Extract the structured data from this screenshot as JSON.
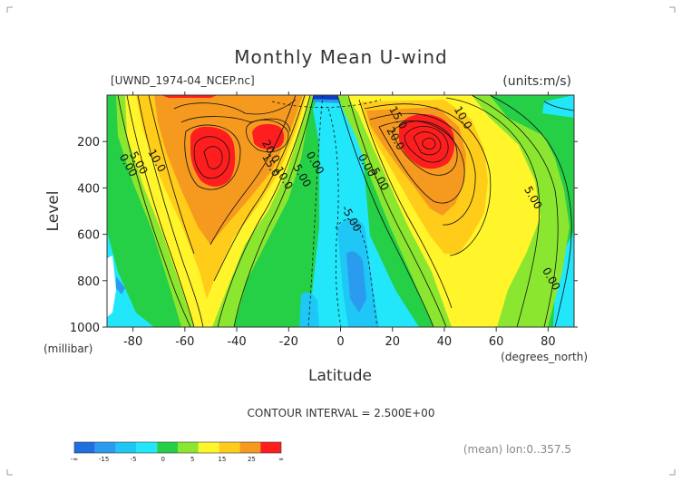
{
  "chart_data": {
    "type": "heatmap",
    "title": "Monthly Mean U-wind",
    "subtitle": "[UWND_1974-04_NCEP.nc]",
    "units": "(units:m/s)",
    "ylabel": "Level",
    "ylabel_unit": "(millibar)",
    "xlabel": "Latitude",
    "xlabel_unit": "(degrees_north)",
    "xlim": [
      -90,
      90
    ],
    "ylim": [
      1000,
      0
    ],
    "x_ticks": [
      -80,
      -60,
      -40,
      -20,
      0,
      20,
      40,
      60,
      80
    ],
    "y_ticks": [
      200,
      400,
      600,
      800,
      1000
    ],
    "contour_interval": "CONTOUR INTERVAL = 2.500E+00",
    "footer": "(mean) lon:0..357.5",
    "contour_labels": [
      {
        "text": "0.00",
        "lat": -83,
        "lev": 310
      },
      {
        "text": "5.00",
        "lat": -79,
        "lev": 300
      },
      {
        "text": "10.0",
        "lat": -72,
        "lev": 290
      },
      {
        "text": "20.0",
        "lat": -28,
        "lev": 250
      },
      {
        "text": "15.0",
        "lat": -28,
        "lev": 310
      },
      {
        "text": "10.0",
        "lat": -23,
        "lev": 365
      },
      {
        "text": "5.00",
        "lat": -16,
        "lev": 355
      },
      {
        "text": "0.00",
        "lat": -11,
        "lev": 300
      },
      {
        "text": "-5.00",
        "lat": 3,
        "lev": 540
      },
      {
        "text": "0.00",
        "lat": 9,
        "lev": 310
      },
      {
        "text": "5.00",
        "lat": 14,
        "lev": 370
      },
      {
        "text": "15.0",
        "lat": 21,
        "lev": 105
      },
      {
        "text": "20.0",
        "lat": 20,
        "lev": 195
      },
      {
        "text": "10.0",
        "lat": 46,
        "lev": 105
      },
      {
        "text": "5.00",
        "lat": 73,
        "lev": 450
      },
      {
        "text": "0.00",
        "lat": 80,
        "lev": 800
      }
    ],
    "colorbar": {
      "levels": [
        "-∞",
        "-15",
        "-5",
        "0",
        "5",
        "15",
        "25",
        "∞"
      ],
      "colors": [
        "#1f6fe0",
        "#2b9bf0",
        "#1ec7f5",
        "#22e6fa",
        "#25cf46",
        "#8be630",
        "#fff52a",
        "#ffcc1a",
        "#f59a1e",
        "#ff1e1e"
      ]
    },
    "palette": {
      "red": "#ff1e1e",
      "orange": "#f59a1e",
      "golden": "#ffcc1a",
      "yellow": "#fff52a",
      "lime": "#8be630",
      "green": "#25cf46",
      "cyan": "#22e6fa",
      "lightblue": "#1ec7f5",
      "mblue": "#2b9bf0",
      "blue": "#1f6fe0",
      "dblue": "#0b3fc0"
    }
  }
}
